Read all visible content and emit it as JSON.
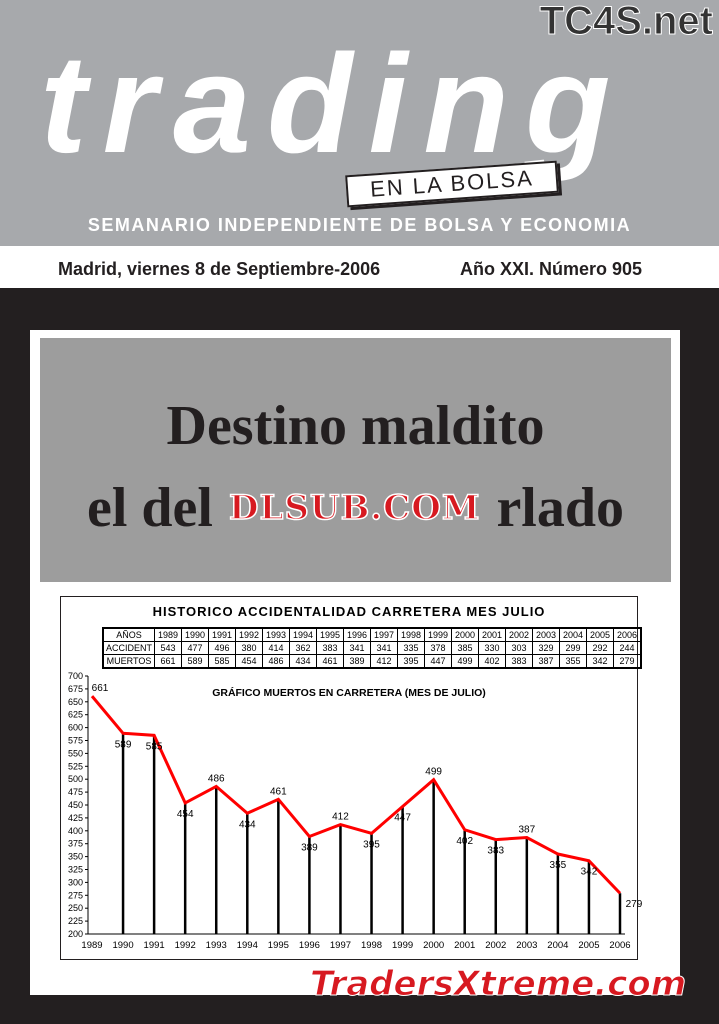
{
  "masthead": {
    "logo": "trading",
    "subtitle_tag": "EN LA BOLSA",
    "tagline": "SEMANARIO INDEPENDIENTE DE BOLSA Y ECONOMIA",
    "watermark_top": "TC4S.net"
  },
  "issue": {
    "date": "Madrid, viernes 8 de Septiembre-2006",
    "number": "Año XXI. Número 905"
  },
  "headline": {
    "line1": "Destino maldito",
    "line2_prefix": "el del",
    "line2_suffix": "rlado",
    "overlay_watermark": "DLSUB.COM"
  },
  "table": {
    "title": "HISTORICO ACCIDENTALIDAD CARRETERA MES JULIO",
    "header": [
      "AÑOS",
      "1989",
      "1990",
      "1991",
      "1992",
      "1993",
      "1994",
      "1995",
      "1996",
      "1997",
      "1998",
      "1999",
      "2000",
      "2001",
      "2002",
      "2003",
      "2004",
      "2005",
      "2006"
    ],
    "rows": [
      [
        "ACCIDENT",
        "543",
        "477",
        "496",
        "380",
        "414",
        "362",
        "383",
        "341",
        "341",
        "335",
        "378",
        "385",
        "330",
        "303",
        "329",
        "299",
        "292",
        "244"
      ],
      [
        "MUERTOS",
        "661",
        "589",
        "585",
        "454",
        "486",
        "434",
        "461",
        "389",
        "412",
        "395",
        "447",
        "499",
        "402",
        "383",
        "387",
        "355",
        "342",
        "279"
      ]
    ]
  },
  "chart_data": {
    "type": "line",
    "title": "GRÁFICO MUERTOS EN CARRETERA (MES DE JULIO)",
    "categories": [
      "1989",
      "1990",
      "1991",
      "1992",
      "1993",
      "1994",
      "1995",
      "1996",
      "1997",
      "1998",
      "1999",
      "2000",
      "2001",
      "2002",
      "2003",
      "2004",
      "2005",
      "2006"
    ],
    "values": [
      661,
      589,
      585,
      454,
      486,
      434,
      461,
      389,
      412,
      395,
      447,
      499,
      402,
      383,
      387,
      355,
      342,
      279
    ],
    "ylim": [
      200,
      700
    ],
    "ytick_step": 25,
    "line_color": "#ff0000",
    "drop_lines": true
  },
  "footer_watermark": "TradersXtreme.com"
}
